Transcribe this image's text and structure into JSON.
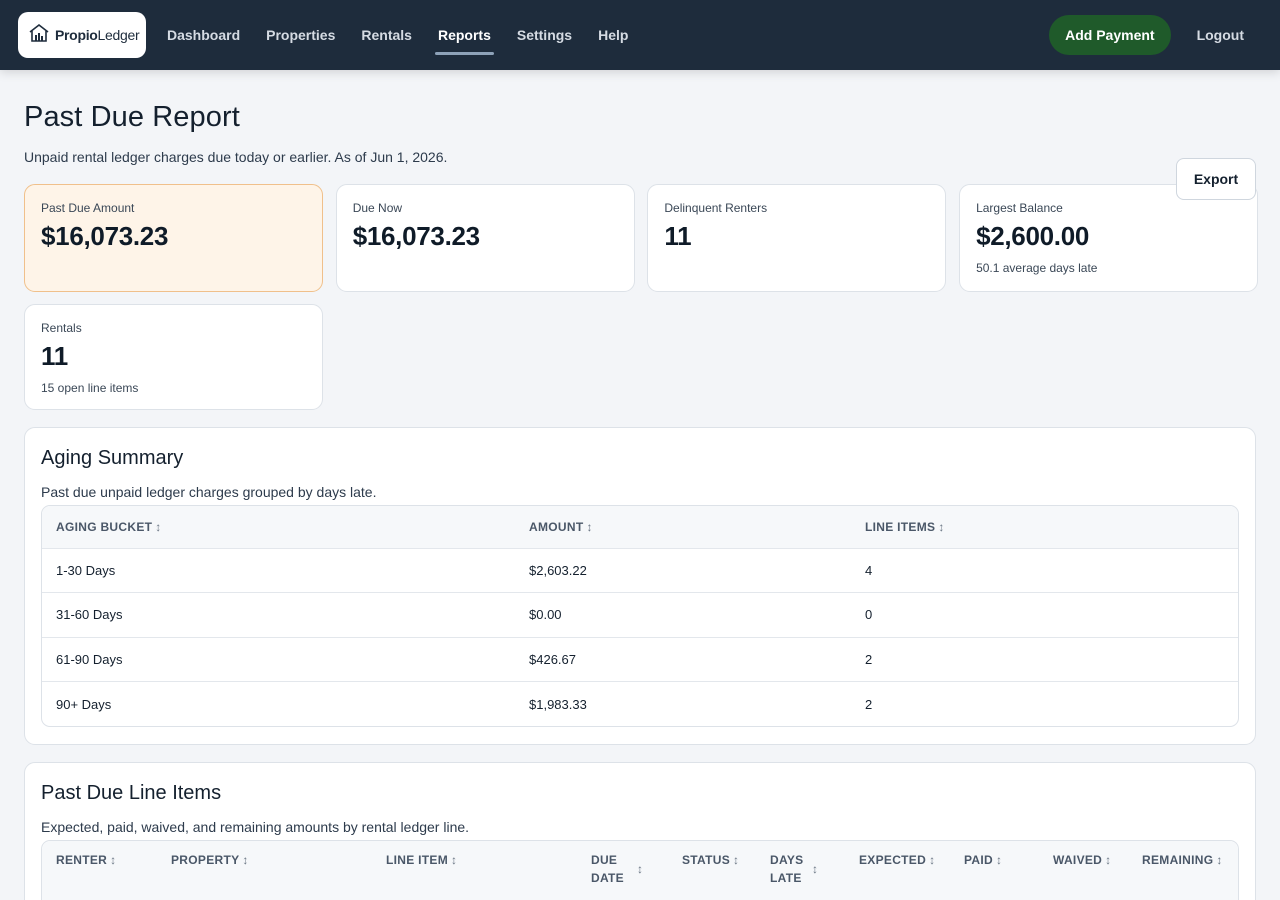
{
  "app": {
    "brand_first": "Propio",
    "brand_second": "Ledger"
  },
  "nav": {
    "links": [
      "Dashboard",
      "Properties",
      "Rentals",
      "Reports",
      "Settings",
      "Help"
    ],
    "active": "Reports",
    "add_payment": "Add Payment",
    "logout": "Logout"
  },
  "page": {
    "title": "Past Due Report",
    "subtitle": "Unpaid rental ledger charges due today or earlier. As of Jun 1, 2026.",
    "export_label": "Export"
  },
  "stats": [
    {
      "label": "Past Due Amount",
      "value": "$16,073.23",
      "note": ""
    },
    {
      "label": "Due Now",
      "value": "$16,073.23",
      "note": ""
    },
    {
      "label": "Delinquent Renters",
      "value": "11",
      "note": ""
    },
    {
      "label": "Largest Balance",
      "value": "$2,600.00",
      "note": "50.1 average days late"
    },
    {
      "label": "Rentals",
      "value": "11",
      "note": "15 open line items"
    }
  ],
  "aging": {
    "title": "Aging Summary",
    "subtitle": "Past due unpaid ledger charges grouped by days late.",
    "columns": [
      "AGING BUCKET",
      "AMOUNT",
      "LINE ITEMS"
    ],
    "rows": [
      [
        "1-30 Days",
        "$2,603.22",
        "4"
      ],
      [
        "31-60 Days",
        "$0.00",
        "0"
      ],
      [
        "61-90 Days",
        "$426.67",
        "2"
      ],
      [
        "90+ Days",
        "$1,983.33",
        "2"
      ]
    ]
  },
  "line_items": {
    "title": "Past Due Line Items",
    "subtitle": "Expected, paid, waived, and remaining amounts by rental ledger line.",
    "columns": [
      "RENTER",
      "PROPERTY",
      "LINE ITEM",
      "DUE",
      "DATE",
      "STATUS",
      "DAYS",
      "LATE",
      "EXPECTED",
      "PAID",
      "WAIVED",
      "REMAINING"
    ]
  },
  "colors": {
    "nav_bg": "#1e2c3c",
    "add_payment_bg": "#1f5a2a",
    "highlight_card_bg": "#fef4e8",
    "highlight_card_border": "#f0c08b"
  },
  "icons": {
    "logo": "house-chart-icon",
    "sort": "sort-arrows-icon"
  }
}
